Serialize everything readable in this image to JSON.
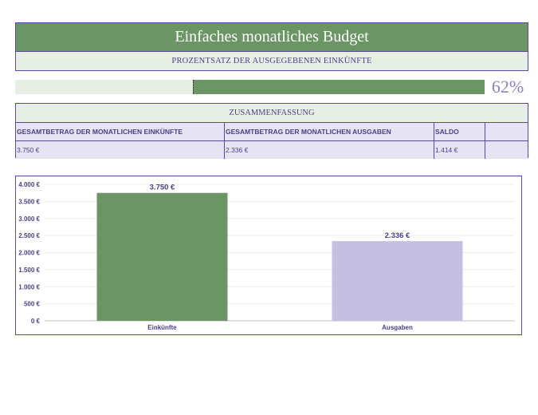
{
  "header": {
    "title": "Einfaches monatliches Budget",
    "subtitle": "PROZENTSATZ DER AUSGEGEBENEN EINKÜNFTE"
  },
  "progress": {
    "percent_value": 0.62,
    "percent_label": "62%"
  },
  "summary": {
    "title": "ZUSAMMENFASSUNG",
    "headers": [
      "GESAMTBETRAG DER MONATLICHEN EINKÜNFTE",
      "GESAMTBETRAG DER MONATLICHEN AUSGABEN",
      "SALDO",
      ""
    ],
    "values": [
      "3.750 €",
      "2.336 €",
      "1.414 €",
      ""
    ]
  },
  "colors": {
    "green": "#6b9564",
    "lavender": "#c5bfe2",
    "purple_text": "#4a3f8a",
    "border": "#5a48a3"
  },
  "chart_data": {
    "type": "bar",
    "title": "",
    "categories": [
      "Einkünfte",
      "Ausgaben"
    ],
    "values": [
      3750,
      2336
    ],
    "value_labels": [
      "3.750 €",
      "2.336 €"
    ],
    "bar_colors": [
      "#6b9564",
      "#c5bfe2"
    ],
    "ylim": [
      0,
      4000
    ],
    "yticks": [
      0,
      500,
      1000,
      1500,
      2000,
      2500,
      3000,
      3500,
      4000
    ],
    "ytick_labels": [
      "0 €",
      "500 €",
      "1.000 €",
      "1.500 €",
      "2.000 €",
      "2.500 €",
      "3.000 €",
      "3.500 €",
      "4.000 €"
    ],
    "grid": true,
    "xlabel": "",
    "ylabel": ""
  }
}
